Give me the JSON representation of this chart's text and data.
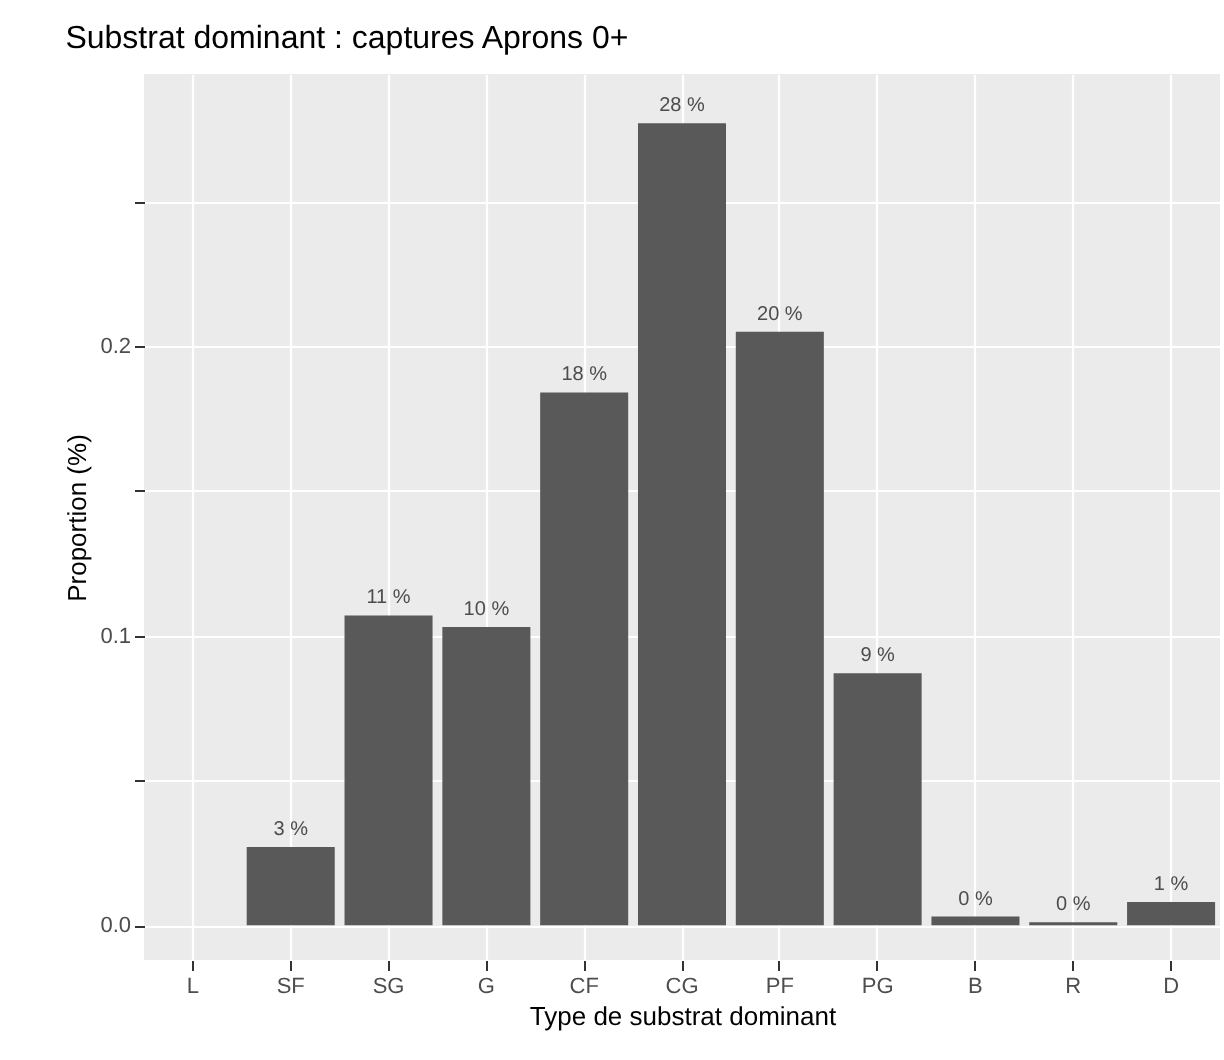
{
  "chart_data": {
    "type": "bar",
    "title": "Substrat dominant : captures Aprons 0+",
    "xlabel": "Type de substrat dominant",
    "ylabel": "Proportion (%)",
    "categories": [
      "L",
      "SF",
      "SG",
      "G",
      "CF",
      "CG",
      "PF",
      "PG",
      "B",
      "R",
      "D"
    ],
    "values": [
      0,
      0.027,
      0.107,
      0.103,
      0.184,
      0.277,
      0.205,
      0.087,
      0.003,
      0.001,
      0.008
    ],
    "value_labels": [
      null,
      "3 %",
      "11 %",
      "10 %",
      "18 %",
      "28 %",
      "20 %",
      "9 %",
      "0 %",
      "0 %",
      "1 %"
    ],
    "color": "#595959",
    "ylim": [
      -0.012,
      0.294
    ],
    "yticks": [
      {
        "value": 0,
        "label": "0.0"
      },
      {
        "value": 0.05,
        "label": null
      },
      {
        "value": 0.1,
        "label": "0.1"
      },
      {
        "value": 0.15,
        "label": null
      },
      {
        "value": 0.2,
        "label": "0.2"
      },
      {
        "value": 0.25,
        "label": null
      }
    ],
    "grid": true
  }
}
